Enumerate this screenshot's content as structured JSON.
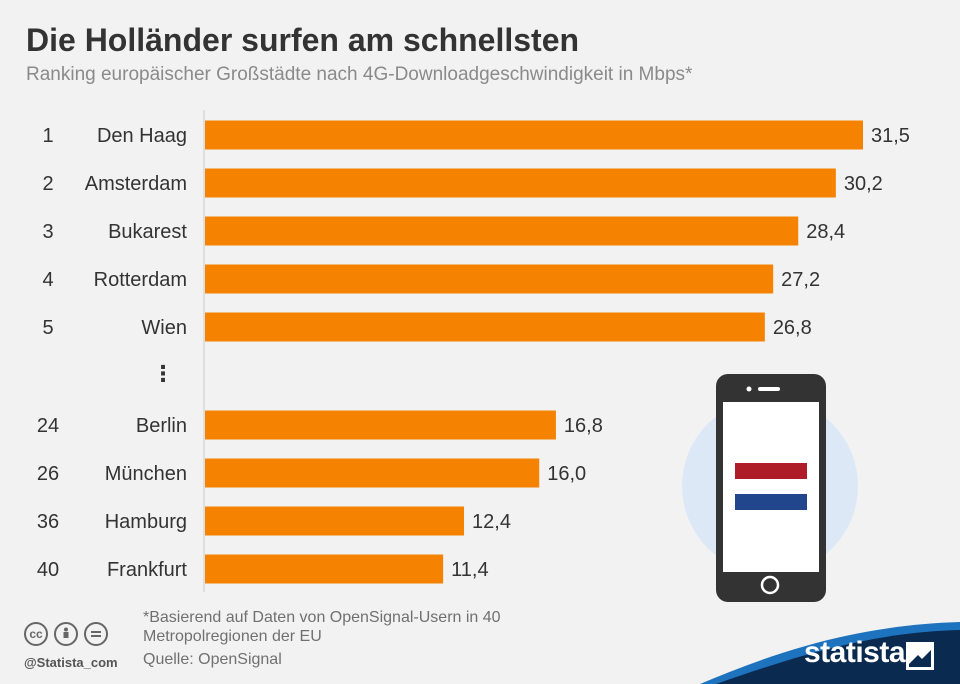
{
  "header": {
    "title": "Die Holländer surfen am schnellsten",
    "subtitle": "Ranking europäischer Großstädte nach 4G-Downloadgeschwindigkeit in Mbps*"
  },
  "chart_data": {
    "type": "bar",
    "orientation": "horizontal",
    "title": "Die Holländer surfen am schnellsten",
    "subtitle": "Ranking europäischer Großstädte nach 4G-Downloadgeschwindigkeit in Mbps*",
    "ranks": [
      "1",
      "2",
      "3",
      "4",
      "5",
      "24",
      "26",
      "36",
      "40"
    ],
    "categories": [
      "Den Haag",
      "Amsterdam",
      "Bukarest",
      "Rotterdam",
      "Wien",
      "Berlin",
      "München",
      "Hamburg",
      "Frankfurt"
    ],
    "values": [
      31.5,
      30.2,
      28.4,
      27.2,
      26.8,
      16.8,
      16.0,
      12.4,
      11.4
    ],
    "value_labels": [
      "31,5",
      "30,2",
      "28,4",
      "27,2",
      "26,8",
      "16,8",
      "16,0",
      "12,4",
      "11,4"
    ],
    "gap_marker": "⋮",
    "bar_color": "#f58200",
    "xlim": [
      0,
      31.5
    ],
    "grid": false,
    "legend": "none"
  },
  "footer": {
    "note": "*Basierend auf Daten von OpenSignal-Usern in 40 Metropolregionen der EU",
    "source": "Quelle: OpenSignal",
    "handle": "@Statista_com",
    "brand": "statista"
  },
  "license_icons": [
    "cc-icon",
    "attribution-icon",
    "no-derivatives-icon"
  ],
  "colors": {
    "background": "#f2f2f2",
    "brand_dark": "#0a2a4f",
    "brand_blue": "#1e73be",
    "flag_red": "#ae1c28",
    "flag_blue": "#21468b"
  }
}
